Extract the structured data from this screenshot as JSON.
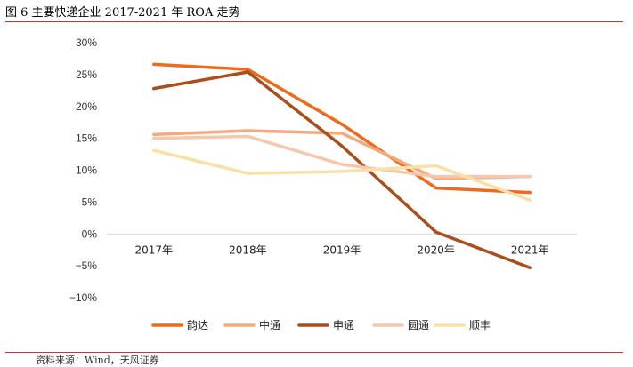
{
  "figure": {
    "title": "图 6 主要快递企业 2017-2021 年 ROA 走势",
    "source": "资料来源：Wind，天风证券"
  },
  "chart_data": {
    "type": "line",
    "categories": [
      "2017年",
      "2018年",
      "2019年",
      "2020年",
      "2021年"
    ],
    "yticks": [
      "30%",
      "25%",
      "20%",
      "15%",
      "10%",
      "5%",
      "0%",
      "−5%",
      "−10%"
    ],
    "ylim": [
      -10,
      30
    ],
    "grid": false,
    "legend_position": "bottom",
    "series": [
      {
        "name": "韵达",
        "color": "#ED6A1F",
        "values": [
          26.6,
          25.8,
          17.2,
          7.2,
          6.5
        ]
      },
      {
        "name": "中通",
        "color": "#F2AB7E",
        "values": [
          15.6,
          16.2,
          15.8,
          8.7,
          9.0
        ]
      },
      {
        "name": "申通",
        "color": "#A94F1E",
        "values": [
          22.8,
          25.4,
          13.8,
          0.3,
          -5.3
        ]
      },
      {
        "name": "圆通",
        "color": "#F6C7AC",
        "values": [
          15.0,
          15.3,
          10.9,
          9.0,
          9.0
        ]
      },
      {
        "name": "顺丰",
        "color": "#FAE0A6",
        "values": [
          13.1,
          9.5,
          9.8,
          10.7,
          5.3
        ]
      }
    ]
  }
}
